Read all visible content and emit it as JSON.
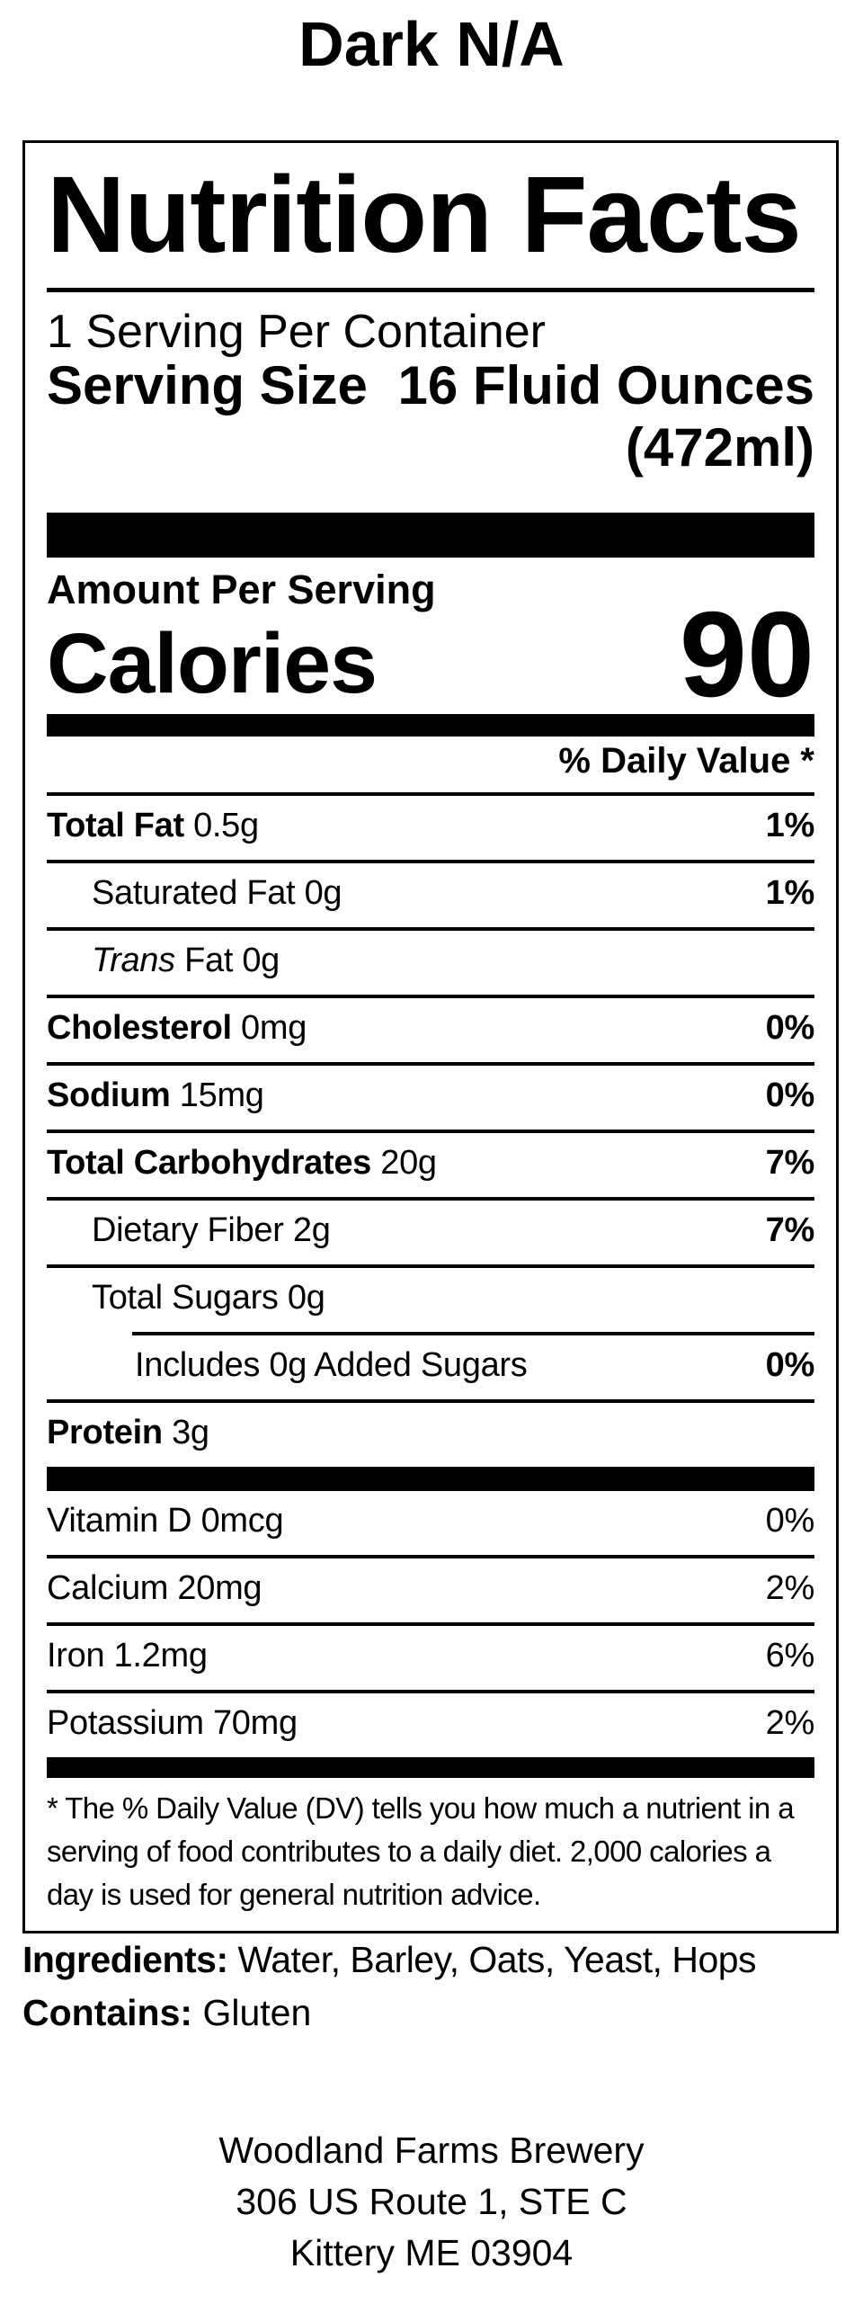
{
  "page_title": "Dark N/A",
  "colors": {
    "text": "#000000",
    "background": "#ffffff"
  },
  "label": {
    "title": "Nutrition Facts",
    "servings_per_container": "1 Serving Per Container",
    "serving_size": {
      "label": "Serving Size",
      "value": "16 Fluid Ounces",
      "metric": "(472ml)"
    },
    "amount_per_serving": "Amount Per Serving",
    "calories": {
      "label": "Calories",
      "value": "90"
    },
    "daily_value_header": "% Daily Value *",
    "nutrients": [
      {
        "name": "Total Fat",
        "amount": "0.5g",
        "dv": "1%",
        "bold": true,
        "indent": 0
      },
      {
        "name": "Saturated Fat",
        "amount": "0g",
        "dv": "1%",
        "bold": false,
        "indent": 1
      },
      {
        "name": "Fat",
        "italic_prefix": "Trans",
        "amount": "0g",
        "dv": "",
        "bold": false,
        "indent": 1
      },
      {
        "name": "Cholesterol",
        "amount": "0mg",
        "dv": "0%",
        "bold": true,
        "indent": 0
      },
      {
        "name": "Sodium",
        "amount": "15mg",
        "dv": "0%",
        "bold": true,
        "indent": 0
      },
      {
        "name": "Total Carbohydrates",
        "amount": "20g",
        "dv": "7%",
        "bold": true,
        "indent": 0
      },
      {
        "name": "Dietary Fiber",
        "amount": "2g",
        "dv": "7%",
        "bold": false,
        "indent": 1
      },
      {
        "name": "Total Sugars",
        "amount": "0g",
        "dv": "",
        "bold": false,
        "indent": 1,
        "sep_indent": true
      },
      {
        "name": "Includes 0g Added Sugars",
        "amount": "",
        "dv": "0%",
        "bold": false,
        "indent": 2
      },
      {
        "name": "Protein",
        "amount": "3g",
        "dv": "",
        "bold": true,
        "indent": 0,
        "last": true
      }
    ],
    "vitamins": [
      {
        "name": "Vitamin D",
        "amount": "0mcg",
        "dv": "0%"
      },
      {
        "name": "Calcium",
        "amount": "20mg",
        "dv": "2%"
      },
      {
        "name": "Iron",
        "amount": "1.2mg",
        "dv": "6%"
      },
      {
        "name": "Potassium",
        "amount": "70mg",
        "dv": "2%",
        "last": true
      }
    ],
    "footnote_lines": [
      "* The % Daily Value (DV) tells you how much a nutrient in a",
      "serving of food contributes to a daily diet. 2,000 calories a",
      "day is used for general nutrition advice."
    ]
  },
  "ingredients": {
    "label": "Ingredients:",
    "value": "Water, Barley, Oats, Yeast, Hops"
  },
  "contains": {
    "label": "Contains:",
    "value": "Gluten"
  },
  "footer_address": [
    "Woodland Farms Brewery",
    "306 US Route 1, STE C",
    "Kittery ME 03904"
  ]
}
